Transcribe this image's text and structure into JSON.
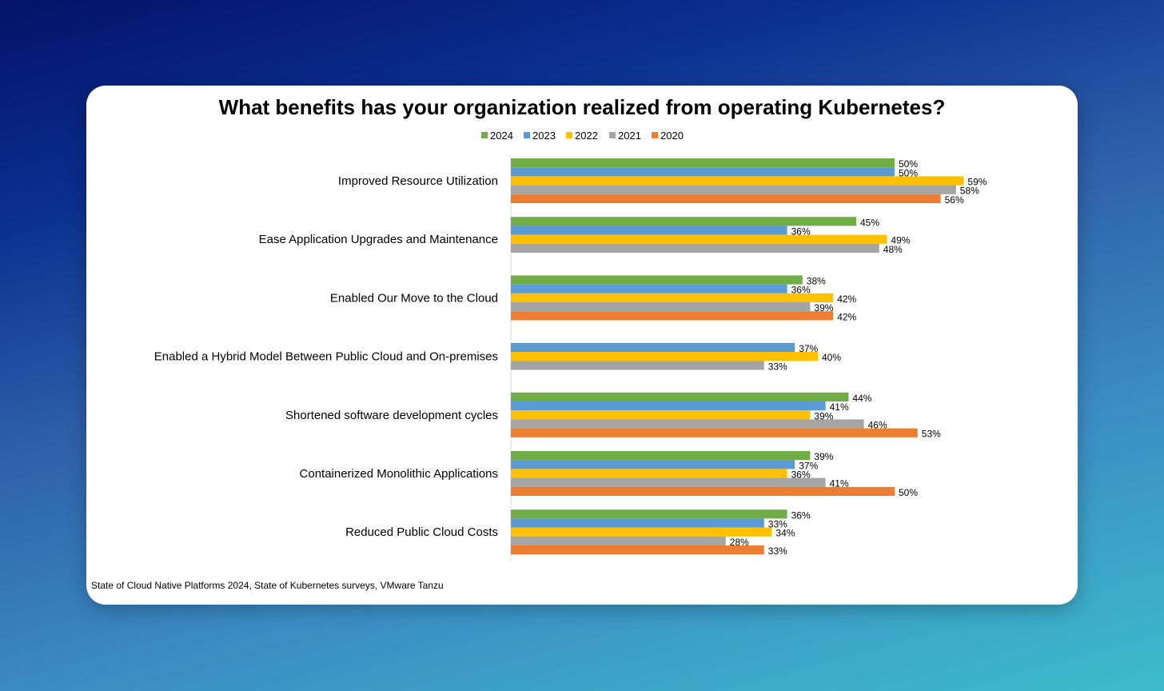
{
  "colors": {
    "2024": "#70ad47",
    "2023": "#5b9bd5",
    "2022": "#ffc000",
    "2021": "#a5a5a5",
    "2020": "#ed7d31"
  },
  "source": "State of Cloud Native Platforms 2024, State of Kubernetes surveys, VMware Tanzu",
  "chart_data": {
    "type": "bar",
    "orientation": "horizontal",
    "title": "What benefits has your organization realized from operating Kubernetes?",
    "legend_position": "top",
    "grid": false,
    "xlim": [
      0,
      100
    ],
    "unit": "%",
    "categories": [
      "Improved Resource Utilization",
      "Ease Application Upgrades and Maintenance",
      "Enabled Our Move to the Cloud",
      "Enabled a Hybrid Model Between Public Cloud and On-premises",
      "Shortened software development cycles",
      "Containerized Monolithic Applications",
      "Reduced Public Cloud Costs"
    ],
    "series": [
      {
        "name": "2024",
        "values": [
          50,
          45,
          38,
          null,
          44,
          39,
          36
        ]
      },
      {
        "name": "2023",
        "values": [
          50,
          36,
          36,
          37,
          41,
          37,
          33
        ]
      },
      {
        "name": "2022",
        "values": [
          59,
          49,
          42,
          40,
          39,
          36,
          34
        ]
      },
      {
        "name": "2021",
        "values": [
          58,
          48,
          39,
          33,
          46,
          41,
          28
        ]
      },
      {
        "name": "2020",
        "values": [
          56,
          null,
          42,
          null,
          53,
          50,
          33
        ]
      }
    ]
  }
}
